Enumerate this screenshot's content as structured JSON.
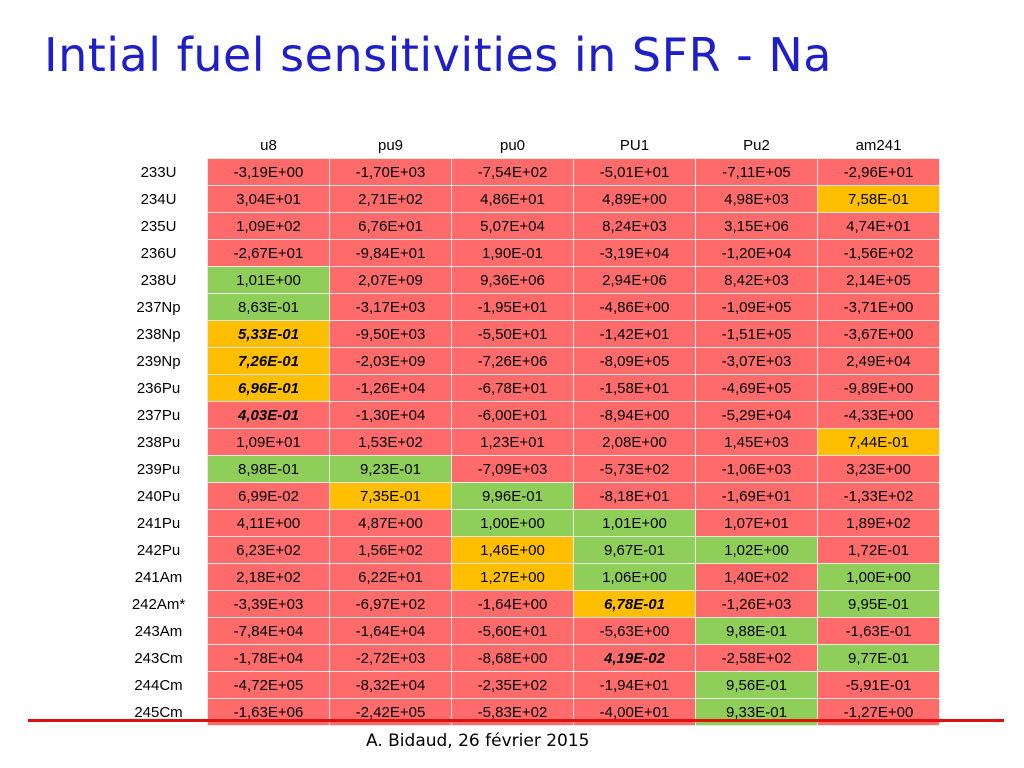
{
  "title": "Intial fuel sensitivities in SFR - Na",
  "footer": "A.  Bidaud, 26 février 2015",
  "colors": {
    "title": "#1f1fc9",
    "red": "#ff6b6b",
    "green": "#8fce58",
    "orange": "#ffbf00",
    "footer_line": "#e01010"
  },
  "table": {
    "columns": [
      "u8",
      "pu9",
      "pu0",
      "PU1",
      "Pu2",
      "am241"
    ],
    "rows": [
      {
        "label": "233U",
        "cells": [
          {
            "v": "-3,19E+00",
            "c": "red"
          },
          {
            "v": "-1,70E+03",
            "c": "red"
          },
          {
            "v": "-7,54E+02",
            "c": "red"
          },
          {
            "v": "-5,01E+01",
            "c": "red"
          },
          {
            "v": "-7,11E+05",
            "c": "red"
          },
          {
            "v": "-2,96E+01",
            "c": "red"
          }
        ]
      },
      {
        "label": "234U",
        "cells": [
          {
            "v": "3,04E+01",
            "c": "red"
          },
          {
            "v": "2,71E+02",
            "c": "red"
          },
          {
            "v": "4,86E+01",
            "c": "red"
          },
          {
            "v": "4,89E+00",
            "c": "red"
          },
          {
            "v": "4,98E+03",
            "c": "red"
          },
          {
            "v": "7,58E-01",
            "c": "orange"
          }
        ]
      },
      {
        "label": "235U",
        "cells": [
          {
            "v": "1,09E+02",
            "c": "red"
          },
          {
            "v": "6,76E+01",
            "c": "red"
          },
          {
            "v": "5,07E+04",
            "c": "red"
          },
          {
            "v": "8,24E+03",
            "c": "red"
          },
          {
            "v": "3,15E+06",
            "c": "red"
          },
          {
            "v": "4,74E+01",
            "c": "red"
          }
        ]
      },
      {
        "label": "236U",
        "cells": [
          {
            "v": "-2,67E+01",
            "c": "red"
          },
          {
            "v": "-9,84E+01",
            "c": "red"
          },
          {
            "v": "1,90E-01",
            "c": "red"
          },
          {
            "v": "-3,19E+04",
            "c": "red"
          },
          {
            "v": "-1,20E+04",
            "c": "red"
          },
          {
            "v": "-1,56E+02",
            "c": "red"
          }
        ]
      },
      {
        "label": "238U",
        "cells": [
          {
            "v": "1,01E+00",
            "c": "green"
          },
          {
            "v": "2,07E+09",
            "c": "red"
          },
          {
            "v": "9,36E+06",
            "c": "red"
          },
          {
            "v": "2,94E+06",
            "c": "red"
          },
          {
            "v": "8,42E+03",
            "c": "red"
          },
          {
            "v": "2,14E+05",
            "c": "red"
          }
        ]
      },
      {
        "label": "237Np",
        "cells": [
          {
            "v": "8,63E-01",
            "c": "green"
          },
          {
            "v": "-3,17E+03",
            "c": "red"
          },
          {
            "v": "-1,95E+01",
            "c": "red"
          },
          {
            "v": "-4,86E+00",
            "c": "red"
          },
          {
            "v": "-1,09E+05",
            "c": "red"
          },
          {
            "v": "-3,71E+00",
            "c": "red"
          }
        ]
      },
      {
        "label": "238Np",
        "cells": [
          {
            "v": "5,33E-01",
            "c": "orange",
            "e": true
          },
          {
            "v": "-9,50E+03",
            "c": "red"
          },
          {
            "v": "-5,50E+01",
            "c": "red"
          },
          {
            "v": "-1,42E+01",
            "c": "red"
          },
          {
            "v": "-1,51E+05",
            "c": "red"
          },
          {
            "v": "-3,67E+00",
            "c": "red"
          }
        ]
      },
      {
        "label": "239Np",
        "cells": [
          {
            "v": "7,26E-01",
            "c": "orange",
            "e": true
          },
          {
            "v": "-2,03E+09",
            "c": "red"
          },
          {
            "v": "-7,26E+06",
            "c": "red"
          },
          {
            "v": "-8,09E+05",
            "c": "red"
          },
          {
            "v": "-3,07E+03",
            "c": "red"
          },
          {
            "v": "2,49E+04",
            "c": "red"
          }
        ]
      },
      {
        "label": "236Pu",
        "cells": [
          {
            "v": "6,96E-01",
            "c": "orange",
            "e": true
          },
          {
            "v": "-1,26E+04",
            "c": "red"
          },
          {
            "v": "-6,78E+01",
            "c": "red"
          },
          {
            "v": "-1,58E+01",
            "c": "red"
          },
          {
            "v": "-4,69E+05",
            "c": "red"
          },
          {
            "v": "-9,89E+00",
            "c": "red"
          }
        ]
      },
      {
        "label": "237Pu",
        "cells": [
          {
            "v": "4,03E-01",
            "c": "red",
            "e": true
          },
          {
            "v": "-1,30E+04",
            "c": "red"
          },
          {
            "v": "-6,00E+01",
            "c": "red"
          },
          {
            "v": "-8,94E+00",
            "c": "red"
          },
          {
            "v": "-5,29E+04",
            "c": "red"
          },
          {
            "v": "-4,33E+00",
            "c": "red"
          }
        ]
      },
      {
        "label": "238Pu",
        "cells": [
          {
            "v": "1,09E+01",
            "c": "red"
          },
          {
            "v": "1,53E+02",
            "c": "red"
          },
          {
            "v": "1,23E+01",
            "c": "red"
          },
          {
            "v": "2,08E+00",
            "c": "red"
          },
          {
            "v": "1,45E+03",
            "c": "red"
          },
          {
            "v": "7,44E-01",
            "c": "orange"
          }
        ]
      },
      {
        "label": "239Pu",
        "cells": [
          {
            "v": "8,98E-01",
            "c": "green"
          },
          {
            "v": "9,23E-01",
            "c": "green"
          },
          {
            "v": "-7,09E+03",
            "c": "red"
          },
          {
            "v": "-5,73E+02",
            "c": "red"
          },
          {
            "v": "-1,06E+03",
            "c": "red"
          },
          {
            "v": "3,23E+00",
            "c": "red"
          }
        ]
      },
      {
        "label": "240Pu",
        "cells": [
          {
            "v": "6,99E-02",
            "c": "red"
          },
          {
            "v": "7,35E-01",
            "c": "orange"
          },
          {
            "v": "9,96E-01",
            "c": "green"
          },
          {
            "v": "-8,18E+01",
            "c": "red"
          },
          {
            "v": "-1,69E+01",
            "c": "red"
          },
          {
            "v": "-1,33E+02",
            "c": "red"
          }
        ]
      },
      {
        "label": "241Pu",
        "cells": [
          {
            "v": "4,11E+00",
            "c": "red"
          },
          {
            "v": "4,87E+00",
            "c": "red"
          },
          {
            "v": "1,00E+00",
            "c": "green"
          },
          {
            "v": "1,01E+00",
            "c": "green"
          },
          {
            "v": "1,07E+01",
            "c": "red"
          },
          {
            "v": "1,89E+02",
            "c": "red"
          }
        ]
      },
      {
        "label": "242Pu",
        "cells": [
          {
            "v": "6,23E+02",
            "c": "red"
          },
          {
            "v": "1,56E+02",
            "c": "red"
          },
          {
            "v": "1,46E+00",
            "c": "orange"
          },
          {
            "v": "9,67E-01",
            "c": "green"
          },
          {
            "v": "1,02E+00",
            "c": "green"
          },
          {
            "v": "1,72E-01",
            "c": "red"
          }
        ]
      },
      {
        "label": "241Am",
        "cells": [
          {
            "v": "2,18E+02",
            "c": "red"
          },
          {
            "v": "6,22E+01",
            "c": "red"
          },
          {
            "v": "1,27E+00",
            "c": "orange"
          },
          {
            "v": "1,06E+00",
            "c": "green"
          },
          {
            "v": "1,40E+02",
            "c": "red"
          },
          {
            "v": "1,00E+00",
            "c": "green"
          }
        ]
      },
      {
        "label": "242Am*",
        "cells": [
          {
            "v": "-3,39E+03",
            "c": "red"
          },
          {
            "v": "-6,97E+02",
            "c": "red"
          },
          {
            "v": "-1,64E+00",
            "c": "red"
          },
          {
            "v": "6,78E-01",
            "c": "orange",
            "e": true
          },
          {
            "v": "-1,26E+03",
            "c": "red"
          },
          {
            "v": "9,95E-01",
            "c": "green"
          }
        ]
      },
      {
        "label": "243Am",
        "cells": [
          {
            "v": "-7,84E+04",
            "c": "red"
          },
          {
            "v": "-1,64E+04",
            "c": "red"
          },
          {
            "v": "-5,60E+01",
            "c": "red"
          },
          {
            "v": "-5,63E+00",
            "c": "red"
          },
          {
            "v": "9,88E-01",
            "c": "green"
          },
          {
            "v": "-1,63E-01",
            "c": "red"
          }
        ]
      },
      {
        "label": "243Cm",
        "cells": [
          {
            "v": "-1,78E+04",
            "c": "red"
          },
          {
            "v": "-2,72E+03",
            "c": "red"
          },
          {
            "v": "-8,68E+00",
            "c": "red"
          },
          {
            "v": "4,19E-02",
            "c": "red",
            "e": true
          },
          {
            "v": "-2,58E+02",
            "c": "red"
          },
          {
            "v": "9,77E-01",
            "c": "green"
          }
        ]
      },
      {
        "label": "244Cm",
        "cells": [
          {
            "v": "-4,72E+05",
            "c": "red"
          },
          {
            "v": "-8,32E+04",
            "c": "red"
          },
          {
            "v": "-2,35E+02",
            "c": "red"
          },
          {
            "v": "-1,94E+01",
            "c": "red"
          },
          {
            "v": "9,56E-01",
            "c": "green"
          },
          {
            "v": "-5,91E-01",
            "c": "red"
          }
        ]
      },
      {
        "label": "245Cm",
        "cells": [
          {
            "v": "-1,63E+06",
            "c": "red"
          },
          {
            "v": "-2,42E+05",
            "c": "red"
          },
          {
            "v": "-5,83E+02",
            "c": "red"
          },
          {
            "v": "-4,00E+01",
            "c": "red"
          },
          {
            "v": "9,33E-01",
            "c": "green"
          },
          {
            "v": "-1,27E+00",
            "c": "red"
          }
        ]
      }
    ]
  }
}
